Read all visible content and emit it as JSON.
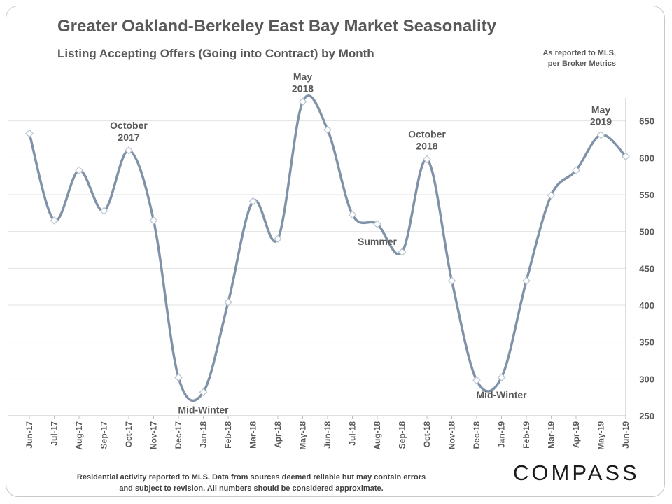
{
  "header": {
    "title": "Greater Oakland-Berkeley East Bay Market Seasonality",
    "subtitle": "Listing Accepting Offers (Going into Contract) by Month",
    "source_note_line1": "As reported to MLS,",
    "source_note_line2": "per Broker Metrics"
  },
  "footer": {
    "line1": "Residential activity reported to MLS. Data from sources deemed reliable but may contain errors",
    "line2": "and subject to revision. All numbers should be considered approximate.",
    "logo_text": "COMPASS"
  },
  "colors": {
    "line": "#7f92a8",
    "marker_fill": "#ffffff",
    "marker_stroke": "#b7c3d0",
    "grid": "#e3e3e3",
    "text": "#595959"
  },
  "chart_data": {
    "type": "line",
    "title": "Greater Oakland-Berkeley East Bay Market Seasonality",
    "subtitle": "Listing Accepting Offers (Going into Contract) by Month",
    "categories": [
      "Jun-17",
      "Jul-17",
      "Aug-17",
      "Sep-17",
      "Oct-17",
      "Nov-17",
      "Dec-17",
      "Jan-18",
      "Feb-18",
      "Mar-18",
      "Apr-18",
      "May-18",
      "Jun-18",
      "Jul-18",
      "Aug-18",
      "Sep-18",
      "Oct-18",
      "Nov-18",
      "Dec-18",
      "Jan-19",
      "Feb-19",
      "Mar-19",
      "Apr-19",
      "May-19",
      "Jun-19"
    ],
    "values": [
      633,
      515,
      583,
      528,
      610,
      515,
      302,
      282,
      404,
      541,
      490,
      676,
      638,
      523,
      510,
      472,
      598,
      433,
      298,
      302,
      433,
      549,
      583,
      631,
      602
    ],
    "ylim": [
      250,
      700
    ],
    "y_ticks": [
      250,
      300,
      350,
      400,
      450,
      500,
      550,
      600,
      650
    ],
    "y_axis_position": "right",
    "grid": true,
    "legend": "none",
    "marker": "diamond",
    "annotations": [
      {
        "lines": [
          "October",
          "2017"
        ],
        "category": "Oct-17",
        "anchor": "above"
      },
      {
        "lines": [
          "May",
          "2018"
        ],
        "category": "May-18",
        "anchor": "above"
      },
      {
        "lines": [
          "October",
          "2018"
        ],
        "category": "Oct-18",
        "anchor": "above"
      },
      {
        "lines": [
          "May",
          "2019"
        ],
        "category": "May-19",
        "anchor": "above"
      },
      {
        "lines": [
          "Mid-Winter"
        ],
        "category": "Jan-18",
        "anchor": "below"
      },
      {
        "lines": [
          "Summer"
        ],
        "category": "Aug-18",
        "anchor": "below"
      },
      {
        "lines": [
          "Mid-Winter"
        ],
        "category": "Jan-19",
        "anchor": "below"
      }
    ]
  }
}
